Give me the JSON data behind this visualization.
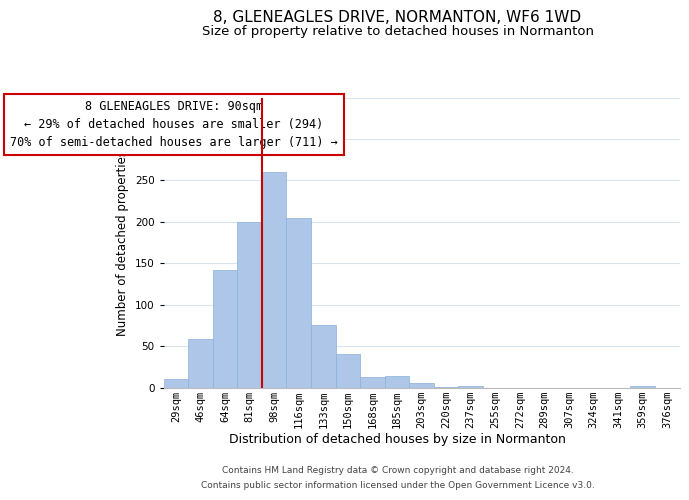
{
  "title": "8, GLENEAGLES DRIVE, NORMANTON, WF6 1WD",
  "subtitle": "Size of property relative to detached houses in Normanton",
  "xlabel": "Distribution of detached houses by size in Normanton",
  "ylabel": "Number of detached properties",
  "bar_labels": [
    "29sqm",
    "46sqm",
    "64sqm",
    "81sqm",
    "98sqm",
    "116sqm",
    "133sqm",
    "150sqm",
    "168sqm",
    "185sqm",
    "203sqm",
    "220sqm",
    "237sqm",
    "255sqm",
    "272sqm",
    "289sqm",
    "307sqm",
    "324sqm",
    "341sqm",
    "359sqm",
    "376sqm"
  ],
  "bar_values": [
    10,
    58,
    142,
    200,
    260,
    204,
    75,
    41,
    13,
    14,
    6,
    1,
    2,
    0,
    0,
    0,
    0,
    0,
    0,
    2,
    0
  ],
  "bar_color": "#aec6e8",
  "bar_edge_color": "#8ab0d8",
  "property_line_x": 3.5,
  "property_line_color": "#cc0000",
  "ylim": [
    0,
    350
  ],
  "yticks": [
    0,
    50,
    100,
    150,
    200,
    250,
    300,
    350
  ],
  "annotation_title": "8 GLENEAGLES DRIVE: 90sqm",
  "annotation_line1": "← 29% of detached houses are smaller (294)",
  "annotation_line2": "70% of semi-detached houses are larger (711) →",
  "annotation_box_color": "#ffffff",
  "annotation_border_color": "#cc0000",
  "footer_line1": "Contains HM Land Registry data © Crown copyright and database right 2024.",
  "footer_line2": "Contains public sector information licensed under the Open Government Licence v3.0.",
  "background_color": "#ffffff",
  "grid_color": "#d8e4f0",
  "title_fontsize": 11,
  "subtitle_fontsize": 9.5,
  "xlabel_fontsize": 9,
  "ylabel_fontsize": 8.5,
  "tick_fontsize": 7.5,
  "footer_fontsize": 6.5
}
